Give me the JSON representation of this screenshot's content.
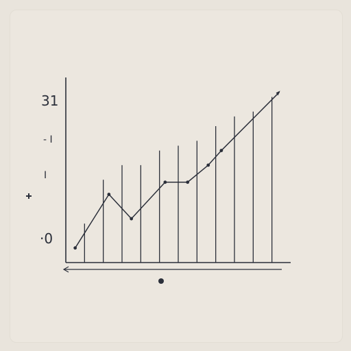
{
  "chart_data": {
    "type": "line",
    "title": "",
    "xlabel": "",
    "ylabel": "",
    "y_tick_labels": [
      {
        "text": "31",
        "value": 31
      },
      {
        "text": "- I",
        "value": 22
      },
      {
        "text": "I",
        "value": 15
      },
      {
        "text": "·0",
        "value": 0
      }
    ],
    "ylim": [
      -4,
      34
    ],
    "xlim": [
      0,
      12
    ],
    "grid_x": [
      1,
      2,
      3,
      4,
      5,
      6,
      7,
      8,
      9,
      10,
      11
    ],
    "grid_top": [
      4,
      13,
      16,
      16,
      19,
      20,
      21,
      24,
      26,
      27,
      30
    ],
    "series": [
      {
        "name": "",
        "x": [
          0.5,
          2.3,
          3.5,
          5.3,
          6.5,
          7.6,
          8.3,
          11.4
        ],
        "values": [
          -1,
          10,
          5,
          12.5,
          12.5,
          16,
          19,
          31
        ]
      }
    ],
    "colors": {
      "line": "#2b2f3a",
      "grid": "#2b2f3a",
      "background": "#e9e4dc"
    },
    "legend": "none",
    "grid": true
  }
}
